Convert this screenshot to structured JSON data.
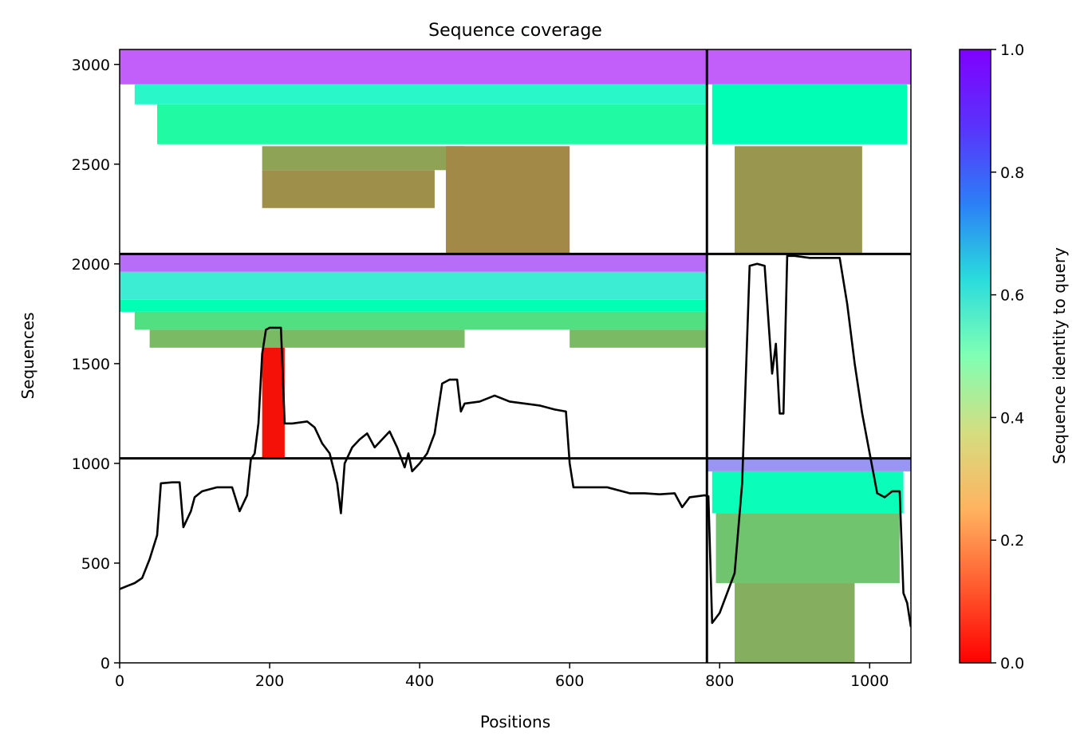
{
  "chart_data": {
    "type": "heatmap",
    "title": "Sequence coverage",
    "xlabel": "Positions",
    "ylabel": "Sequences",
    "xlim": [
      0,
      1055
    ],
    "ylim": [
      0,
      3075
    ],
    "x_ticks": [
      "0",
      "200",
      "400",
      "600",
      "800",
      "1000"
    ],
    "x_tick_values": [
      0,
      200,
      400,
      600,
      800,
      1000
    ],
    "y_ticks": [
      "0",
      "500",
      "1000",
      "1500",
      "2000",
      "2500",
      "3000"
    ],
    "y_tick_values": [
      0,
      500,
      1000,
      1500,
      2000,
      2500,
      3000
    ],
    "colorbar": {
      "label": "Sequence identity to query",
      "range": [
        0,
        1
      ],
      "ticks": [
        "0.0",
        "0.2",
        "0.4",
        "0.6",
        "0.8",
        "1.0"
      ],
      "tick_values": [
        0,
        0.2,
        0.4,
        0.6,
        0.8,
        1.0
      ],
      "colormap": "rainbow_r"
    },
    "chain_boundaries": {
      "x": [
        783
      ],
      "y": [
        1025,
        2050
      ]
    },
    "bands": [
      {
        "x0": 0,
        "x1": 783,
        "y0": 2900,
        "y1": 3075,
        "identity": 0.88
      },
      {
        "x0": 20,
        "x1": 783,
        "y0": 2800,
        "y1": 2900,
        "identity": 0.58
      },
      {
        "x0": 50,
        "x1": 783,
        "y0": 2600,
        "y1": 2800,
        "identity": 0.44
      },
      {
        "x0": 190,
        "x1": 460,
        "y0": 2470,
        "y1": 2590,
        "identity": 0.22
      },
      {
        "x0": 190,
        "x1": 420,
        "y0": 2280,
        "y1": 2470,
        "identity": 0.19
      },
      {
        "x0": 435,
        "x1": 600,
        "y0": 2050,
        "y1": 2590,
        "identity": 0.18
      },
      {
        "x0": 0,
        "x1": 783,
        "y0": 1960,
        "y1": 2050,
        "identity": 0.86
      },
      {
        "x0": 0,
        "x1": 783,
        "y0": 1820,
        "y1": 1960,
        "identity": 0.62
      },
      {
        "x0": 0,
        "x1": 783,
        "y0": 1760,
        "y1": 1820,
        "identity": 0.5
      },
      {
        "x0": 20,
        "x1": 783,
        "y0": 1670,
        "y1": 1760,
        "identity": 0.34
      },
      {
        "x0": 40,
        "x1": 460,
        "y0": 1580,
        "y1": 1670,
        "identity": 0.26
      },
      {
        "x0": 600,
        "x1": 783,
        "y0": 1580,
        "y1": 1670,
        "identity": 0.26
      },
      {
        "x0": 190,
        "x1": 220,
        "y0": 1025,
        "y1": 1580,
        "identity": 0.02
      },
      {
        "x0": 783,
        "x1": 1055,
        "y0": 2900,
        "y1": 3075,
        "identity": 0.88
      },
      {
        "x0": 790,
        "x1": 1050,
        "y0": 2600,
        "y1": 2900,
        "identity": 0.5
      },
      {
        "x0": 820,
        "x1": 990,
        "y0": 2050,
        "y1": 2590,
        "identity": 0.2
      },
      {
        "x0": 783,
        "x1": 1055,
        "y0": 960,
        "y1": 1025,
        "identity": 0.8
      },
      {
        "x0": 790,
        "x1": 1045,
        "y0": 750,
        "y1": 960,
        "identity": 0.52
      },
      {
        "x0": 795,
        "x1": 1040,
        "y0": 400,
        "y1": 750,
        "identity": 0.28
      },
      {
        "x0": 820,
        "x1": 980,
        "y0": 0,
        "y1": 400,
        "identity": 0.24
      }
    ],
    "coverage_line": {
      "x": [
        0,
        10,
        20,
        30,
        40,
        50,
        55,
        70,
        80,
        85,
        95,
        100,
        110,
        120,
        130,
        150,
        160,
        170,
        175,
        180,
        185,
        190,
        195,
        200,
        215,
        220,
        230,
        250,
        260,
        270,
        280,
        290,
        295,
        300,
        310,
        320,
        330,
        340,
        360,
        370,
        380,
        385,
        390,
        400,
        410,
        420,
        430,
        440,
        450,
        455,
        460,
        480,
        500,
        520,
        540,
        560,
        580,
        595,
        600,
        605,
        620,
        650,
        680,
        700,
        720,
        740,
        750,
        760,
        780,
        785,
        790,
        800,
        810,
        820,
        830,
        840,
        850,
        860,
        870,
        875,
        880,
        885,
        890,
        900,
        920,
        940,
        960,
        970,
        980,
        990,
        1000,
        1010,
        1020,
        1030,
        1040,
        1045,
        1050,
        1055
      ],
      "y": [
        370,
        385,
        400,
        425,
        520,
        640,
        900,
        905,
        905,
        680,
        760,
        830,
        860,
        870,
        880,
        880,
        760,
        840,
        1020,
        1050,
        1200,
        1550,
        1670,
        1680,
        1680,
        1200,
        1200,
        1210,
        1180,
        1100,
        1050,
        900,
        750,
        1000,
        1080,
        1120,
        1150,
        1080,
        1160,
        1080,
        980,
        1050,
        960,
        1000,
        1050,
        1150,
        1400,
        1420,
        1420,
        1260,
        1300,
        1310,
        1340,
        1310,
        1300,
        1290,
        1270,
        1260,
        1000,
        880,
        880,
        880,
        850,
        850,
        845,
        850,
        780,
        830,
        840,
        835,
        200,
        250,
        350,
        450,
        900,
        1990,
        2000,
        1990,
        1450,
        1600,
        1250,
        1250,
        2040,
        2040,
        2030,
        2030,
        2030,
        1800,
        1500,
        1250,
        1050,
        850,
        830,
        860,
        860,
        350,
        300,
        180
      ]
    }
  }
}
